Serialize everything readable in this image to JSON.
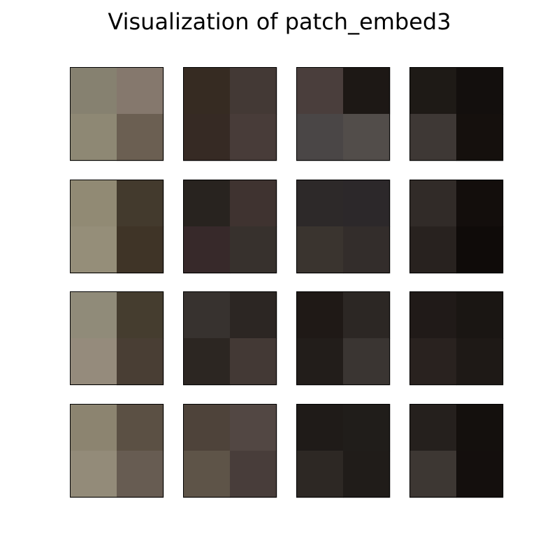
{
  "title": "Visualization of patch_embed3",
  "chart_data": {
    "type": "heatmap",
    "title": "Visualization of patch_embed3",
    "grid_rows": 4,
    "grid_cols": 4,
    "patch_size": [
      2,
      2
    ],
    "axes_visible": false,
    "patches": [
      [
        [
          "#868170",
          "#85786d"
        ],
        [
          "#8e8874",
          "#6b5f52"
        ]
      ],
      [
        [
          "#362b22",
          "#433935"
        ],
        [
          "#362a24",
          "#483c39"
        ]
      ],
      [
        [
          "#4a3e3c",
          "#1d1815"
        ],
        [
          "#4a4646",
          "#524d4a"
        ]
      ],
      [
        [
          "#1e1a16",
          "#130f0d"
        ],
        [
          "#3e3835",
          "#15100d"
        ]
      ],
      [
        [
          "#918a74",
          "#433a2d"
        ],
        [
          "#958e79",
          "#3f3427"
        ]
      ],
      [
        [
          "#28231f",
          "#3f3330"
        ],
        [
          "#37292a",
          "#37312d"
        ]
      ],
      [
        [
          "#2d2929",
          "#2c282a"
        ],
        [
          "#3a342f",
          "#332d2b"
        ]
      ],
      [
        [
          "#312b28",
          "#130e0c"
        ],
        [
          "#28221f",
          "#0f0b09"
        ]
      ],
      [
        [
          "#908b79",
          "#453d2f"
        ],
        [
          "#958b7c",
          "#493e34"
        ]
      ],
      [
        [
          "#37322f",
          "#2c2623"
        ],
        [
          "#2c2622",
          "#433935"
        ]
      ],
      [
        [
          "#1f1916",
          "#2c2724"
        ],
        [
          "#221d1a",
          "#3a3532"
        ]
      ],
      [
        [
          "#201a18",
          "#1a1613"
        ],
        [
          "#29221f",
          "#1e1916"
        ]
      ],
      [
        [
          "#8c8470",
          "#5b5044"
        ],
        [
          "#938b79",
          "#675c52"
        ]
      ],
      [
        [
          "#4e433a",
          "#524743"
        ],
        [
          "#5e5448",
          "#483d3a"
        ]
      ],
      [
        [
          "#1f1b18",
          "#201d1a"
        ],
        [
          "#2d2824",
          "#201c19"
        ]
      ],
      [
        [
          "#25201d",
          "#14100d"
        ],
        [
          "#3d3733",
          "#140f0d"
        ]
      ]
    ]
  }
}
